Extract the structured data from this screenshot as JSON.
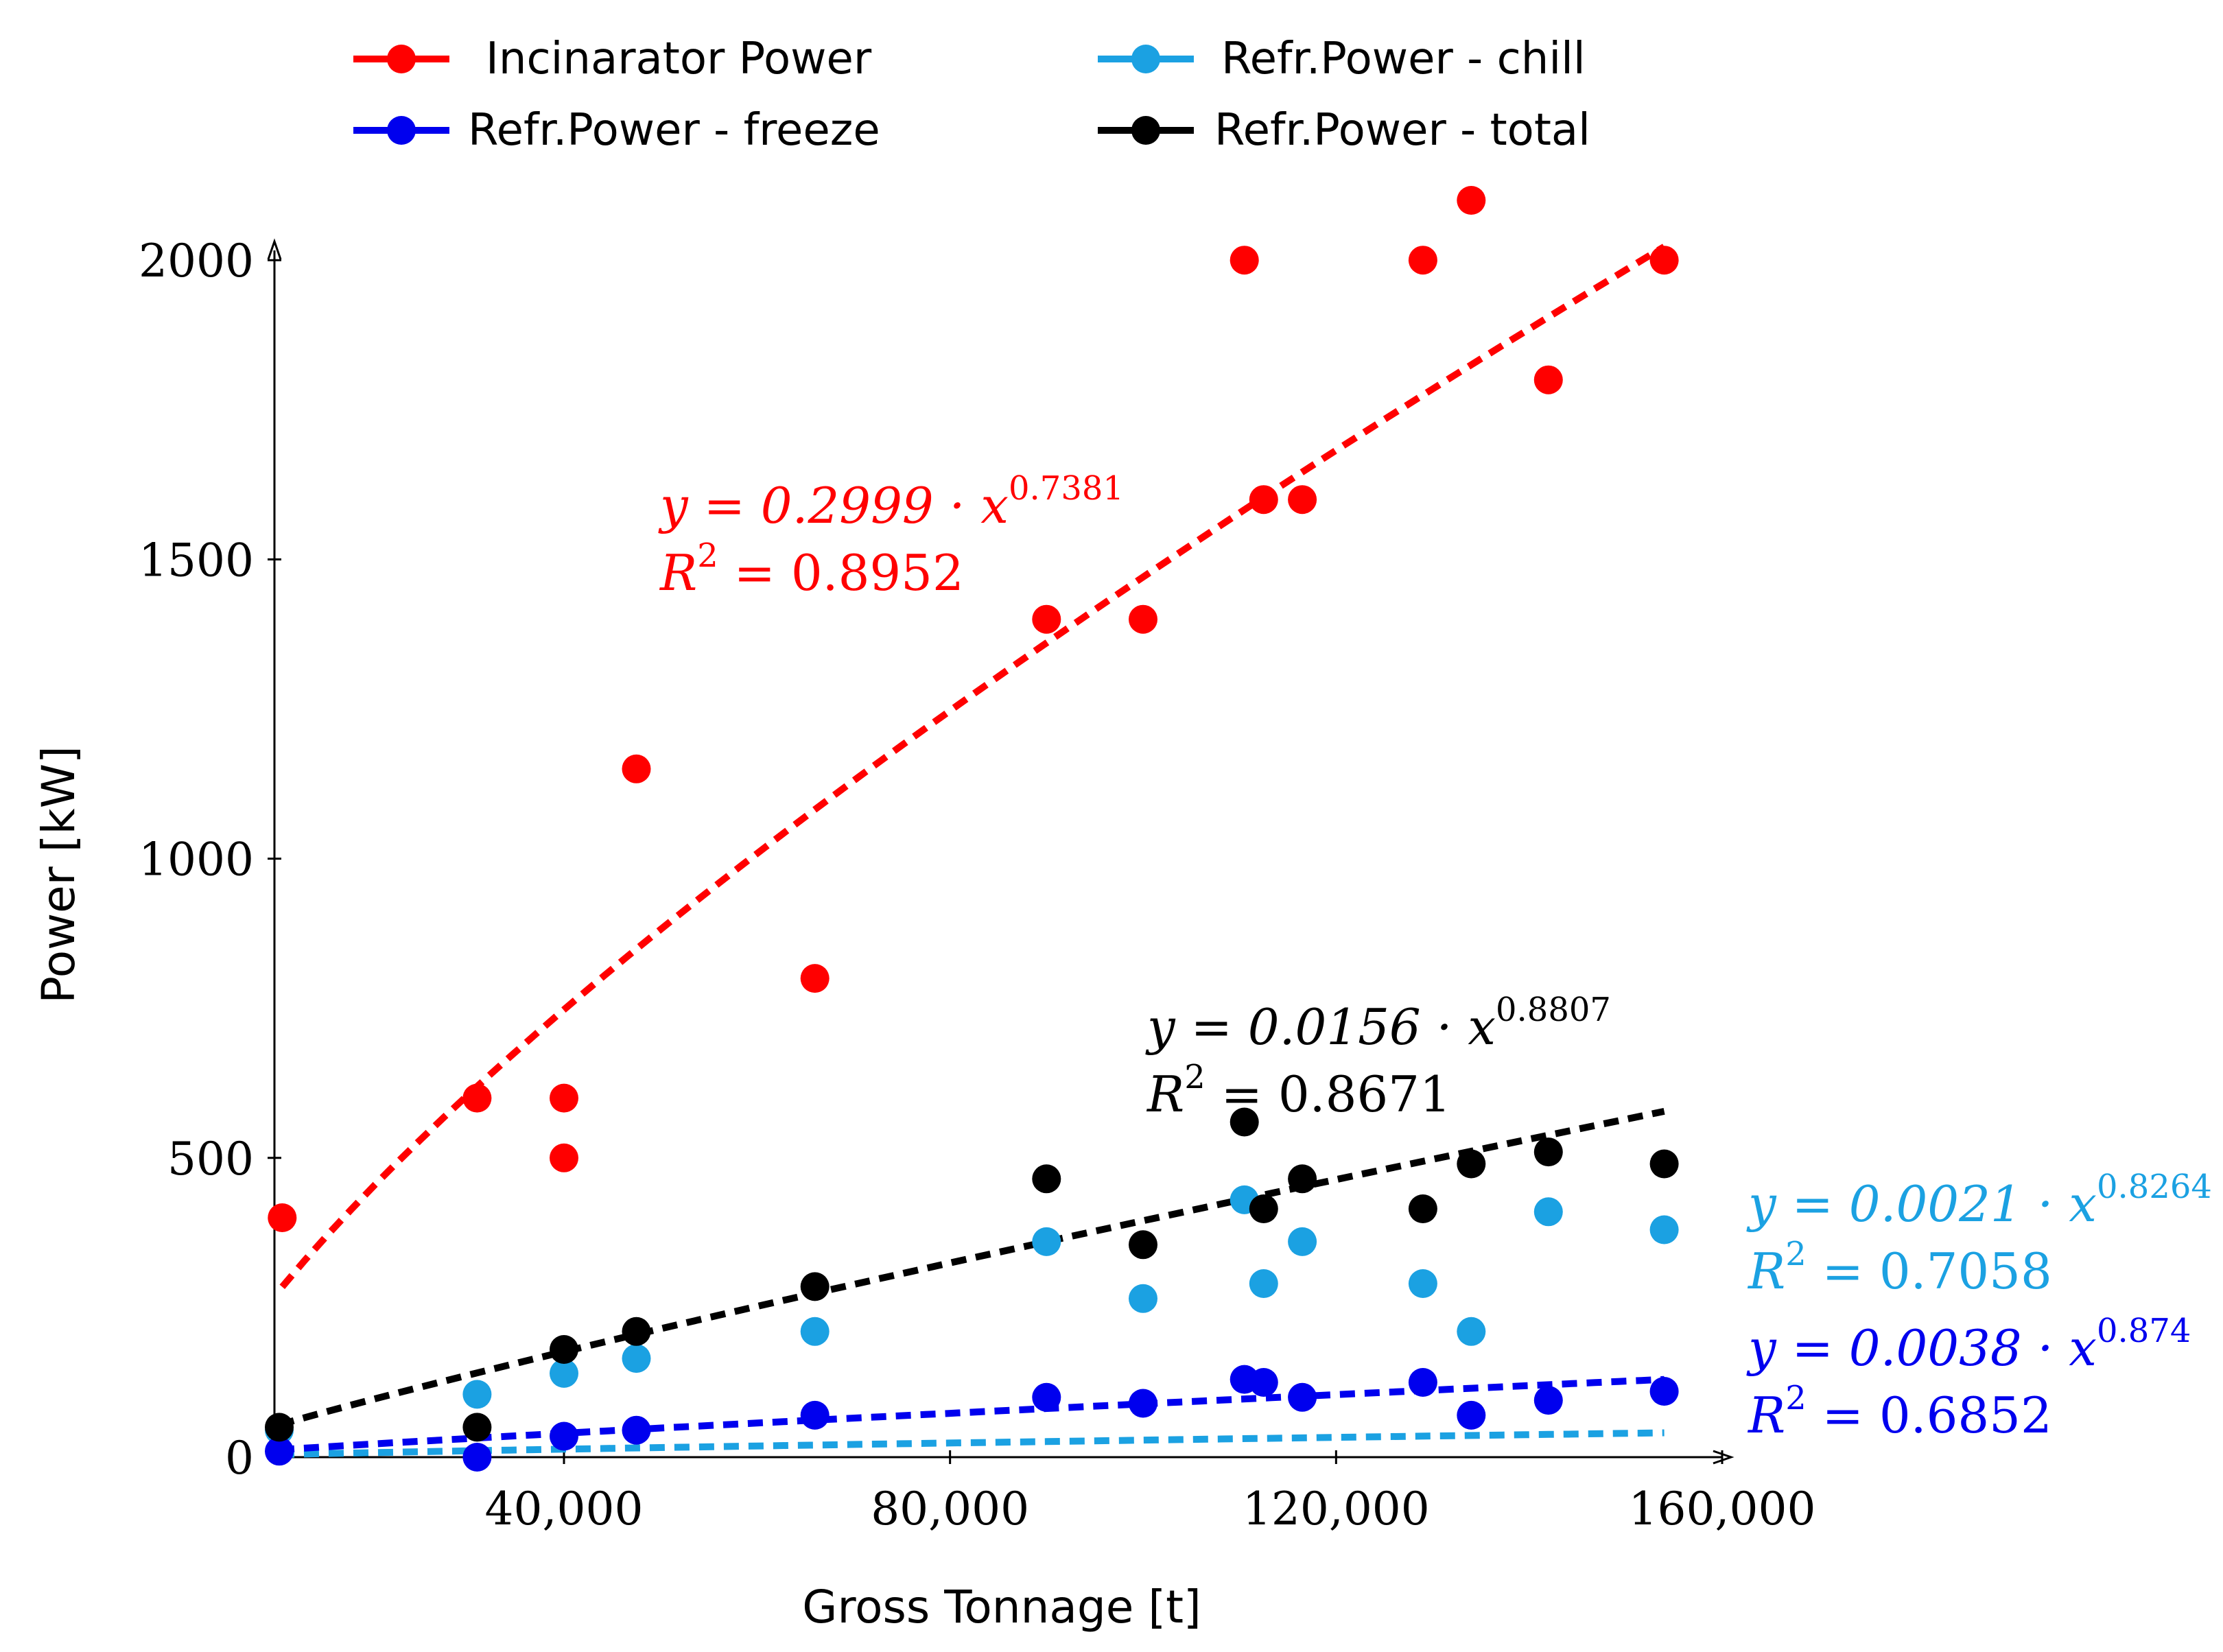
{
  "chart_data": {
    "type": "scatter",
    "xlabel": "Gross Tonnage [t]",
    "ylabel": "Power [kW]",
    "xlim": [
      10000,
      160000
    ],
    "ylim": [
      0,
      2100
    ],
    "xticks": [
      40000,
      80000,
      120000,
      160000
    ],
    "xtick_labels": [
      "40,000",
      "80,000",
      "120,000",
      "160,000"
    ],
    "yticks": [
      0,
      500,
      1000,
      1500,
      2000
    ],
    "ytick_labels": [
      "0",
      "500",
      "1000",
      "1500",
      "2000"
    ],
    "legend_position": "top",
    "series": [
      {
        "name": "Incinarator Power",
        "color": "#ff0000",
        "points": [
          [
            10800,
            400
          ],
          [
            31000,
            600
          ],
          [
            40000,
            600
          ],
          [
            40000,
            500
          ],
          [
            47500,
            1150
          ],
          [
            66000,
            800
          ],
          [
            90000,
            1400
          ],
          [
            100000,
            1400
          ],
          [
            110500,
            2000
          ],
          [
            112500,
            1600
          ],
          [
            116500,
            1600
          ],
          [
            129000,
            2000
          ],
          [
            134000,
            2100
          ],
          [
            142000,
            1800
          ],
          [
            154000,
            2000
          ]
        ],
        "fit": {
          "a": 0.2999,
          "b": 0.7381,
          "x_range": [
            10800,
            154000
          ]
        },
        "equation": "y = 0.2999 · x",
        "exponent": "0.7381",
        "r2_prefix": "R",
        "r2_sup": "2",
        "r2_value": " = 0.8952"
      },
      {
        "name": "Refr.Power - chill",
        "color": "#1ba1e2",
        "points": [
          [
            10500,
            45
          ],
          [
            31000,
            105
          ],
          [
            40000,
            140
          ],
          [
            47500,
            165
          ],
          [
            66000,
            210
          ],
          [
            90000,
            360
          ],
          [
            100000,
            265
          ],
          [
            110500,
            430
          ],
          [
            112500,
            290
          ],
          [
            116500,
            360
          ],
          [
            129000,
            290
          ],
          [
            134000,
            210
          ],
          [
            142000,
            410
          ],
          [
            154000,
            380
          ]
        ],
        "fit": {
          "a": 0.0021,
          "b": 0.8264,
          "x_range": [
            10500,
            154000
          ]
        },
        "equation": "y = 0.0021 · x",
        "exponent": "0.8264",
        "r2_prefix": "R",
        "r2_sup": "2",
        "r2_value": " = 0.7058"
      },
      {
        "name": "Refr.Power - freeze",
        "color": "#0000ee",
        "points": [
          [
            10500,
            10
          ],
          [
            31000,
            0
          ],
          [
            40000,
            35
          ],
          [
            47500,
            45
          ],
          [
            66000,
            70
          ],
          [
            90000,
            100
          ],
          [
            100000,
            90
          ],
          [
            110500,
            130
          ],
          [
            112500,
            125
          ],
          [
            116500,
            100
          ],
          [
            129000,
            125
          ],
          [
            134000,
            70
          ],
          [
            142000,
            95
          ],
          [
            154000,
            110
          ]
        ],
        "fit": {
          "a": 0.0038,
          "b": 0.874,
          "x_range": [
            10500,
            154000
          ]
        },
        "equation": "y = 0.0038 · x",
        "exponent": "0.874",
        "r2_prefix": "R",
        "r2_sup": "2",
        "r2_value": " = 0.6852"
      },
      {
        "name": "Refr.Power - total",
        "color": "#000000",
        "points": [
          [
            10500,
            50
          ],
          [
            31000,
            50
          ],
          [
            40000,
            180
          ],
          [
            47500,
            210
          ],
          [
            66000,
            285
          ],
          [
            90000,
            465
          ],
          [
            100000,
            355
          ],
          [
            110500,
            560
          ],
          [
            112500,
            415
          ],
          [
            116500,
            465
          ],
          [
            129000,
            415
          ],
          [
            134000,
            490
          ],
          [
            142000,
            510
          ],
          [
            154000,
            490
          ]
        ],
        "fit": {
          "a": 0.0156,
          "b": 0.8807,
          "x_range": [
            10500,
            154000
          ]
        },
        "equation": "y = 0.0156 · x",
        "exponent": "0.8807",
        "r2_prefix": "R",
        "r2_sup": "2",
        "r2_value": " = 0.8671"
      }
    ]
  }
}
